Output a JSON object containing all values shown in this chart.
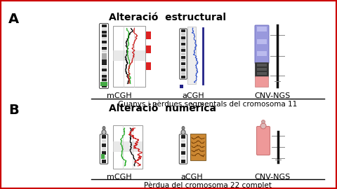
{
  "title_A": "Alteració  estructural",
  "title_B": "Alteració  numèrica",
  "label_A": "A",
  "label_B": "B",
  "caption_A": "Guanys i pèrdues segmentals del cromosoma 11",
  "caption_B": "Pèrdua del cromosoma 22 complet",
  "method_labels": [
    "mCGH",
    "aCGH",
    "CNV-NGS"
  ],
  "border_color": "#cc0000",
  "background": "#ffffff",
  "title_fontsize": 10,
  "label_fontsize": 14,
  "caption_fontsize": 7.5,
  "method_fontsize": 8
}
